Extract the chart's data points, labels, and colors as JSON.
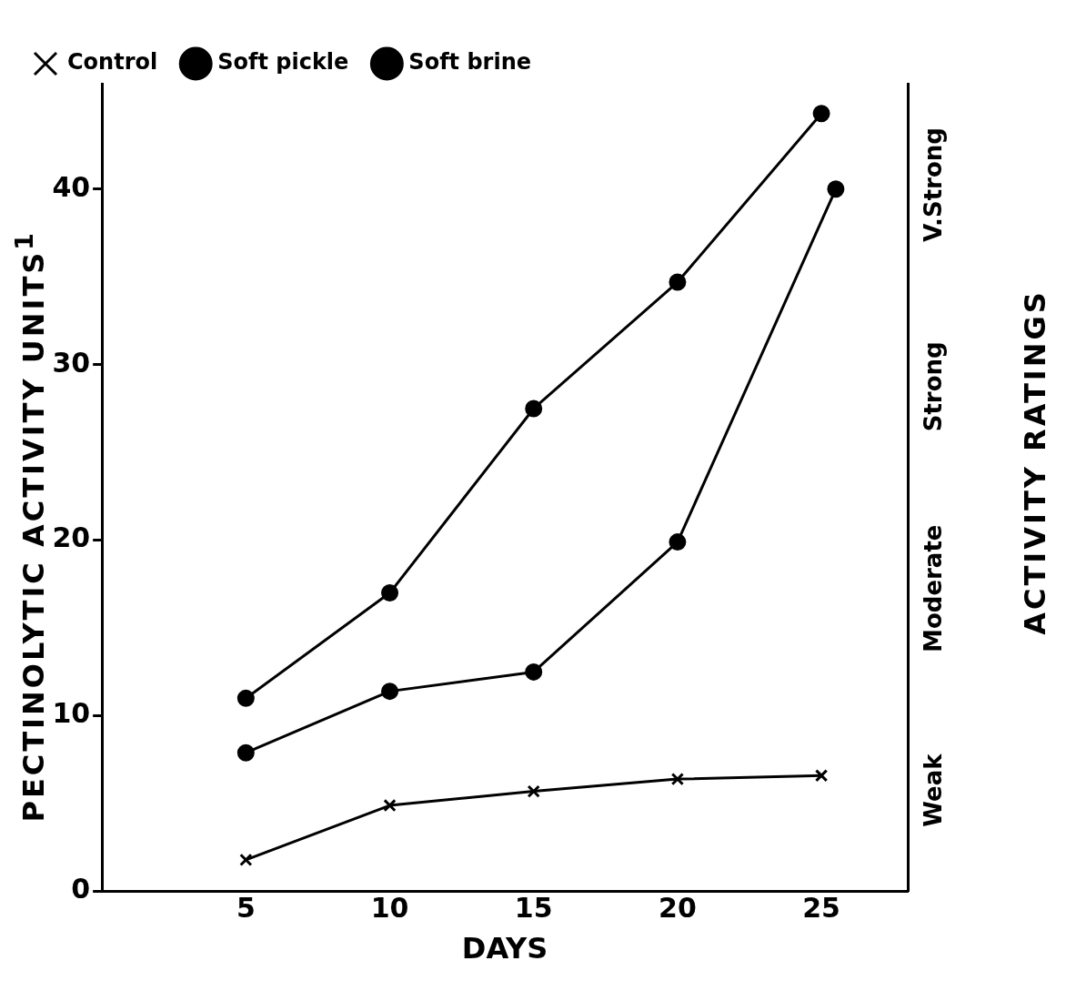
{
  "chart_data": {
    "type": "line",
    "xlabel": "DAYS",
    "ylabel": "PECTINOLYTIC ACTIVITY UNITS$^{1}$",
    "y2label": "ACTIVITY RATINGS",
    "xlim": [
      0,
      28
    ],
    "xticks": [
      5,
      10,
      15,
      20,
      25
    ],
    "ylim": [
      0,
      46
    ],
    "yticks": [
      0,
      10,
      20,
      30,
      40
    ],
    "annotations": [
      "Weak",
      "Moderate",
      "Strong",
      "V.Strong"
    ],
    "grid": false,
    "legend": "top left",
    "line_style": "solid",
    "series": [
      {
        "name": "Control",
        "color": "#000000",
        "marker": "cross",
        "x": [
          5,
          10,
          15,
          20,
          25
        ],
        "values": [
          1.8,
          4.9,
          5.7,
          6.4,
          6.6
        ]
      },
      {
        "name": "Soft pickle",
        "color": "#000000",
        "marker": "circle",
        "x": [
          5,
          10,
          15,
          20,
          25.5
        ],
        "values": [
          7.9,
          11.4,
          12.5,
          19.9,
          40
        ]
      },
      {
        "name": "Soft brine",
        "color": "#000000",
        "marker": "circle",
        "x": [
          5,
          10,
          15,
          20,
          25
        ],
        "values": [
          11,
          17,
          27.5,
          34.7,
          44.3
        ]
      }
    ]
  }
}
